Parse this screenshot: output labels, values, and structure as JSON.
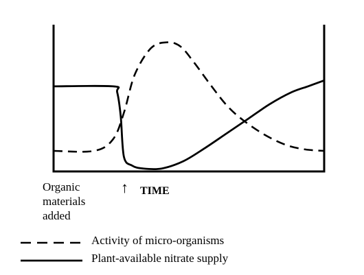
{
  "chart_data": {
    "type": "line",
    "title": "",
    "xlabel": "TIME",
    "ylabel": "",
    "x_annotation": {
      "lines": [
        "Organic",
        "materials",
        "added"
      ],
      "marker": "↑"
    },
    "grid": false,
    "legend_position": "bottom-left",
    "xlim": [
      0,
      100
    ],
    "ylim": [
      0,
      100
    ],
    "series": [
      {
        "name": "Activity of micro-organisms",
        "style": "dashed",
        "color": "#000000",
        "x": [
          0,
          15,
          22,
          26,
          30,
          36,
          42,
          47,
          52,
          58,
          64,
          70,
          78,
          86,
          93,
          100
        ],
        "y": [
          14,
          14,
          22,
          40,
          66,
          84,
          88,
          85,
          74,
          59,
          45,
          35,
          25,
          18,
          15,
          14
        ]
      },
      {
        "name": "Plant-available nitrate supply",
        "style": "solid",
        "color": "#000000",
        "x": [
          0,
          22,
          23.5,
          24.8,
          26,
          29,
          33,
          40,
          48,
          56,
          64,
          72,
          80,
          88,
          94,
          100
        ],
        "y": [
          58,
          58,
          54,
          38,
          10,
          4,
          2,
          2,
          7,
          16,
          26,
          36,
          46,
          54,
          58,
          62
        ]
      }
    ]
  }
}
